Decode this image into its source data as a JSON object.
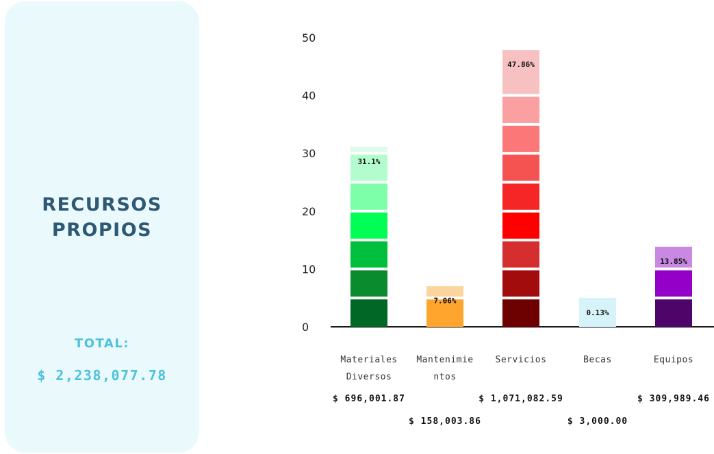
{
  "panel": {
    "title_line1": "RECURSOS",
    "title_line2": "PROPIOS",
    "total_label": "TOTAL:",
    "total_value": "$ 2,238,077.78"
  },
  "chart_data": {
    "type": "bar",
    "title": "",
    "xlabel": "",
    "ylabel": "",
    "ylim": [
      0,
      50
    ],
    "yticks": [
      0,
      10,
      20,
      30,
      40,
      50
    ],
    "categories": [
      {
        "lines": [
          "Materiales",
          "Diversos"
        ],
        "amount": "$ 696,001.87",
        "amount_row": 1
      },
      {
        "lines": [
          "Mantenimie",
          "ntos"
        ],
        "amount": "$ 158,003.86",
        "amount_row": 2
      },
      {
        "lines": [
          "Servicios"
        ],
        "amount": "$ 1,071,082.59",
        "amount_row": 1
      },
      {
        "lines": [
          "Becas"
        ],
        "amount": "$ 3,000.00",
        "amount_row": 2
      },
      {
        "lines": [
          "Equipos"
        ],
        "amount": "$ 309,989.46",
        "amount_row": 1
      }
    ],
    "values": [
      31.1,
      7.06,
      47.86,
      0.13,
      13.85
    ],
    "value_labels": [
      "31.1%",
      "7.06%",
      "47.86%",
      "0.13%",
      "13.85%"
    ],
    "segment_colors": [
      [
        "#006727",
        "#0a8c2e",
        "#00bf3c",
        "#00ff55",
        "#7dffaa",
        "#b3fccd",
        "#dcfce7"
      ],
      [
        "#ffa52e",
        "#fcd49e"
      ],
      [
        "#6d0000",
        "#a20c0c",
        "#d42e2e",
        "#ff0000",
        "#f52626",
        "#f55252",
        "#fc7878",
        "#fba0a0",
        "#f7c1c1"
      ],
      [
        "#d6f3f9"
      ],
      [
        "#4e0569",
        "#9500c9",
        "#c989e3"
      ]
    ]
  }
}
